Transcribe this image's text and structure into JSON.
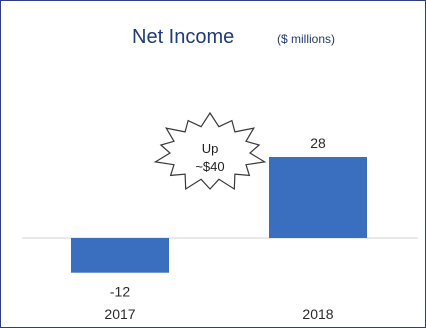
{
  "chart_data": {
    "type": "bar",
    "title": "Net Income",
    "subtitle": "($ millions)",
    "categories": [
      "2017",
      "2018"
    ],
    "values": [
      -12,
      28
    ],
    "data_labels": [
      "-12",
      "28"
    ],
    "annotation": {
      "line1": "Up",
      "line2": "~$40"
    },
    "colors": {
      "bar": "#3a6fc0",
      "title": "#1f3b7a",
      "frame": "#2e3f7f",
      "zero_line": "#d3d3d3"
    },
    "xlabel": "",
    "ylabel": "",
    "ylim": [
      -20,
      50
    ],
    "grid": false,
    "legend": "none"
  }
}
